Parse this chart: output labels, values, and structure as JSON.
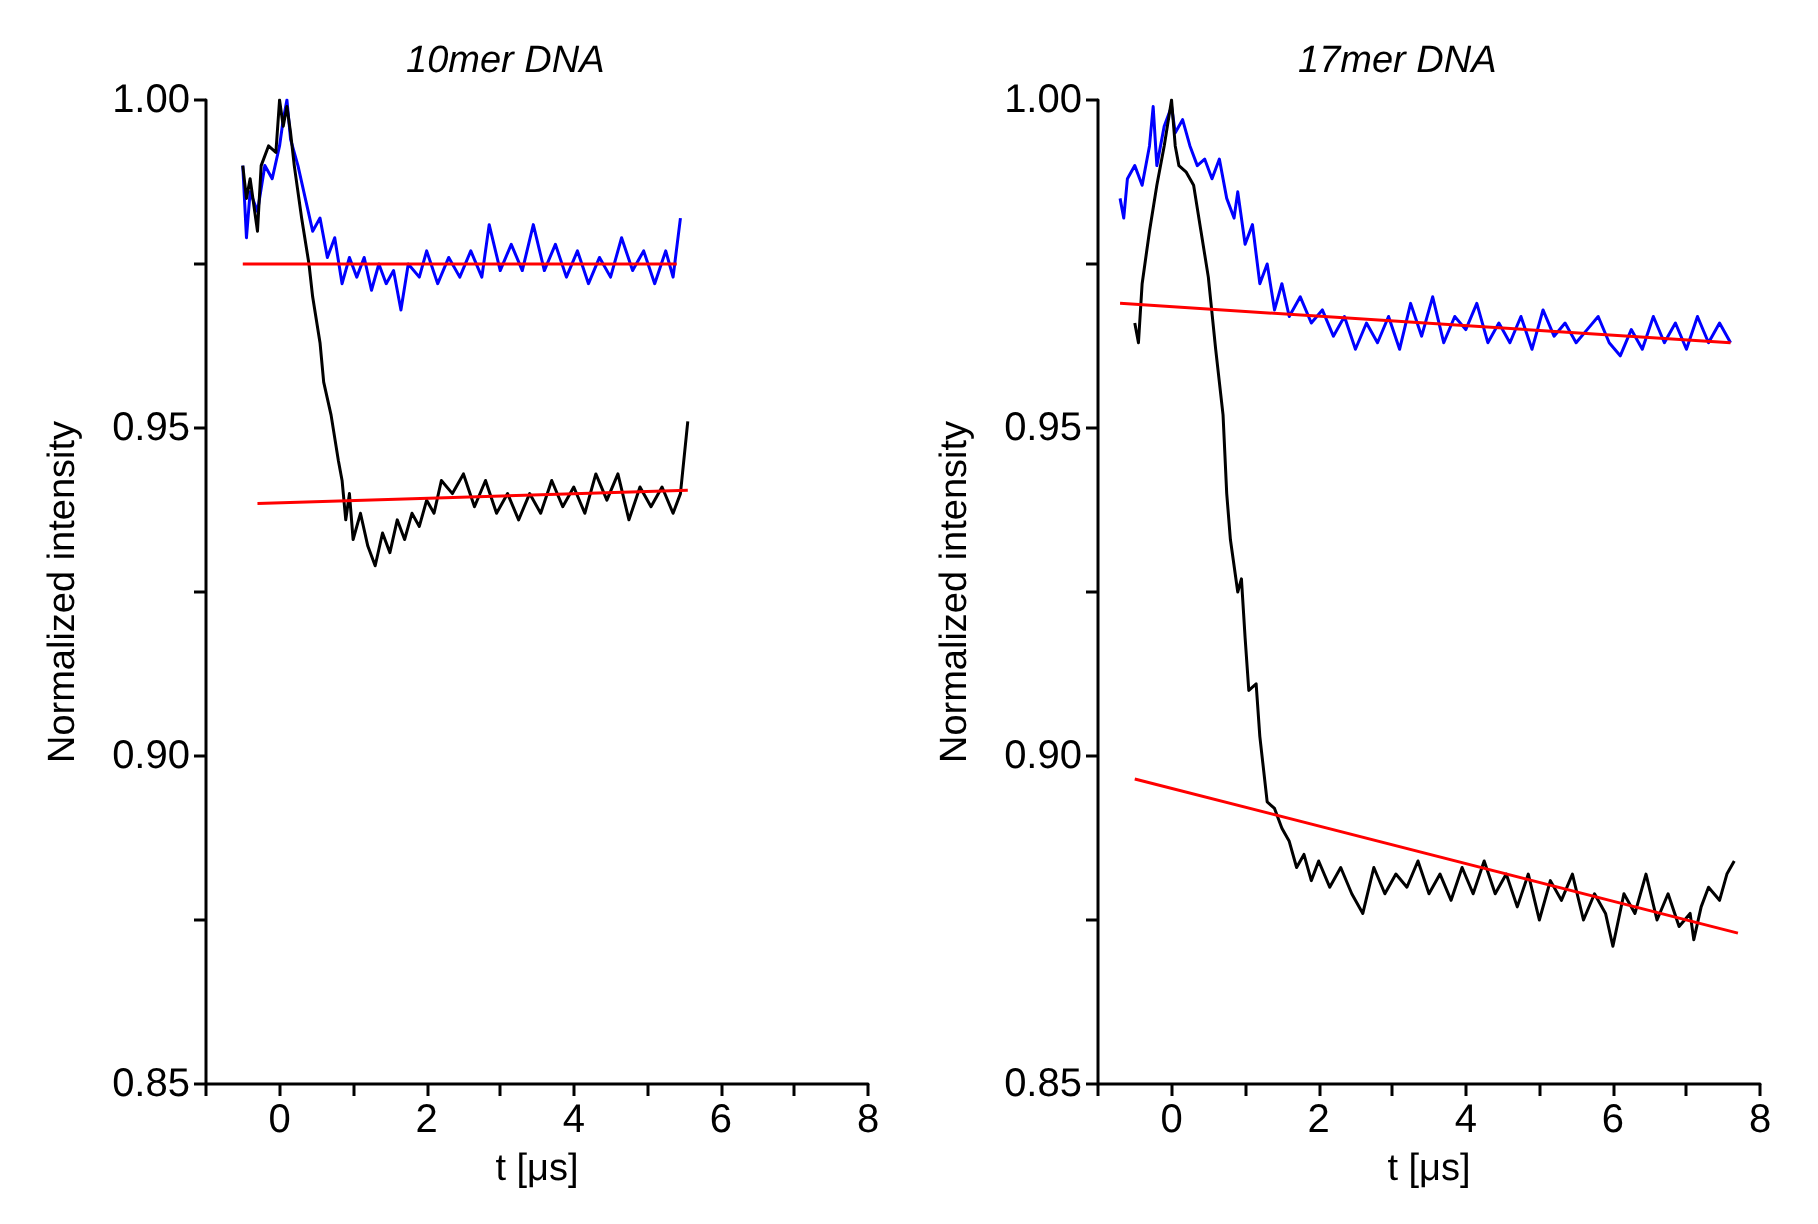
{
  "chart_data": [
    {
      "type": "line",
      "title": "10mer DNA",
      "xlabel": "t [μs]",
      "ylabel": "Normalized intensity",
      "xlim": [
        -1,
        8
      ],
      "xticks": [
        {
          "value": -1,
          "label": null
        },
        0,
        {
          "value": 1,
          "label": null
        },
        2,
        {
          "value": 3,
          "label": null
        },
        4,
        {
          "value": 5,
          "label": null
        },
        6,
        {
          "value": 7,
          "label": null
        },
        8
      ],
      "ylim": [
        0.85,
        1.0
      ],
      "yticks": [
        {
          "value": 0.85,
          "label": "0.85"
        },
        {
          "value": 0.875,
          "label": null
        },
        {
          "value": 0.9,
          "label": "0.90"
        },
        {
          "value": 0.925,
          "label": null
        },
        {
          "value": 0.95,
          "label": "0.95"
        },
        {
          "value": 0.975,
          "label": null
        },
        {
          "value": 1.0,
          "label": "1.00"
        }
      ],
      "grid": false,
      "marker": "none",
      "line_style": "solid",
      "series": [
        {
          "color": "#0000ff",
          "x": [
            -0.5,
            -0.45,
            -0.4,
            -0.3,
            -0.2,
            -0.1,
            0,
            0.05,
            0.1,
            0.15,
            0.25,
            0.35,
            0.45,
            0.55,
            0.65,
            0.75,
            0.85,
            0.95,
            1.05,
            1.15,
            1.25,
            1.35,
            1.45,
            1.55,
            1.65,
            1.75,
            1.9,
            2.0,
            2.15,
            2.3,
            2.45,
            2.6,
            2.75,
            2.85,
            3.0,
            3.15,
            3.3,
            3.45,
            3.6,
            3.75,
            3.9,
            4.05,
            4.2,
            4.35,
            4.5,
            4.65,
            4.8,
            4.95,
            5.1,
            5.25,
            5.35,
            5.45
          ],
          "values": [
            0.99,
            0.979,
            0.986,
            0.983,
            0.99,
            0.988,
            0.993,
            0.997,
            1.0,
            0.994,
            0.99,
            0.985,
            0.98,
            0.982,
            0.976,
            0.979,
            0.972,
            0.976,
            0.973,
            0.976,
            0.971,
            0.975,
            0.972,
            0.974,
            0.968,
            0.975,
            0.973,
            0.977,
            0.972,
            0.976,
            0.973,
            0.977,
            0.973,
            0.981,
            0.974,
            0.978,
            0.974,
            0.981,
            0.974,
            0.978,
            0.973,
            0.977,
            0.972,
            0.976,
            0.973,
            0.979,
            0.974,
            0.977,
            0.972,
            0.977,
            0.973,
            0.982
          ]
        },
        {
          "color": "#000000",
          "x": [
            -0.5,
            -0.45,
            -0.4,
            -0.3,
            -0.25,
            -0.15,
            -0.05,
            0,
            0.05,
            0.1,
            0.15,
            0.2,
            0.3,
            0.4,
            0.45,
            0.55,
            0.6,
            0.7,
            0.8,
            0.85,
            0.9,
            0.95,
            1.0,
            1.1,
            1.2,
            1.3,
            1.4,
            1.5,
            1.6,
            1.7,
            1.8,
            1.9,
            2.0,
            2.1,
            2.2,
            2.35,
            2.5,
            2.65,
            2.8,
            2.95,
            3.1,
            3.25,
            3.4,
            3.55,
            3.7,
            3.85,
            4.0,
            4.15,
            4.3,
            4.45,
            4.6,
            4.75,
            4.9,
            5.05,
            5.2,
            5.35,
            5.45,
            5.55
          ],
          "values": [
            0.99,
            0.985,
            0.988,
            0.98,
            0.99,
            0.993,
            0.992,
            1.0,
            0.996,
            0.999,
            0.995,
            0.99,
            0.982,
            0.975,
            0.97,
            0.963,
            0.957,
            0.952,
            0.945,
            0.942,
            0.936,
            0.94,
            0.933,
            0.937,
            0.932,
            0.929,
            0.934,
            0.931,
            0.936,
            0.933,
            0.937,
            0.935,
            0.939,
            0.937,
            0.942,
            0.94,
            0.943,
            0.938,
            0.942,
            0.937,
            0.94,
            0.936,
            0.94,
            0.937,
            0.942,
            0.938,
            0.941,
            0.937,
            0.943,
            0.939,
            0.943,
            0.936,
            0.941,
            0.938,
            0.941,
            0.937,
            0.94,
            0.951
          ]
        },
        {
          "color": "#ff0000",
          "x": [
            -0.5,
            5.4
          ],
          "values": [
            0.975,
            0.975
          ]
        },
        {
          "color": "#ff0000",
          "x": [
            -0.3,
            5.55
          ],
          "values": [
            0.9385,
            0.9405
          ]
        }
      ]
    },
    {
      "type": "line",
      "title": "17mer DNA",
      "xlabel": "t [μs]",
      "ylabel": "Normalized intensity",
      "xlim": [
        -1,
        8
      ],
      "xticks": [
        {
          "value": -1,
          "label": null
        },
        0,
        {
          "value": 1,
          "label": null
        },
        2,
        {
          "value": 3,
          "label": null
        },
        4,
        {
          "value": 5,
          "label": null
        },
        6,
        {
          "value": 7,
          "label": null
        },
        8
      ],
      "ylim": [
        0.85,
        1.0
      ],
      "yticks": [
        {
          "value": 0.85,
          "label": "0.85"
        },
        {
          "value": 0.875,
          "label": null
        },
        {
          "value": 0.9,
          "label": "0.90"
        },
        {
          "value": 0.925,
          "label": null
        },
        {
          "value": 0.95,
          "label": "0.95"
        },
        {
          "value": 0.975,
          "label": null
        },
        {
          "value": 1.0,
          "label": "1.00"
        }
      ],
      "grid": false,
      "marker": "none",
      "line_style": "solid",
      "series": [
        {
          "color": "#0000ff",
          "x": [
            -0.7,
            -0.65,
            -0.6,
            -0.5,
            -0.4,
            -0.3,
            -0.25,
            -0.2,
            -0.1,
            0,
            0.05,
            0.15,
            0.25,
            0.35,
            0.45,
            0.55,
            0.65,
            0.75,
            0.85,
            0.9,
            1.0,
            1.1,
            1.2,
            1.3,
            1.4,
            1.5,
            1.6,
            1.75,
            1.9,
            2.05,
            2.2,
            2.35,
            2.5,
            2.65,
            2.8,
            2.95,
            3.1,
            3.25,
            3.4,
            3.55,
            3.7,
            3.85,
            4.0,
            4.15,
            4.3,
            4.45,
            4.6,
            4.75,
            4.9,
            5.05,
            5.2,
            5.35,
            5.5,
            5.65,
            5.8,
            5.95,
            6.1,
            6.25,
            6.4,
            6.55,
            6.7,
            6.85,
            7.0,
            7.15,
            7.3,
            7.45,
            7.6
          ],
          "values": [
            0.985,
            0.982,
            0.988,
            0.99,
            0.987,
            0.993,
            0.999,
            0.99,
            0.996,
            0.999,
            0.995,
            0.997,
            0.993,
            0.99,
            0.991,
            0.988,
            0.991,
            0.985,
            0.982,
            0.986,
            0.978,
            0.981,
            0.972,
            0.975,
            0.968,
            0.972,
            0.967,
            0.97,
            0.966,
            0.968,
            0.964,
            0.967,
            0.962,
            0.966,
            0.963,
            0.967,
            0.962,
            0.969,
            0.964,
            0.97,
            0.963,
            0.967,
            0.965,
            0.969,
            0.963,
            0.966,
            0.963,
            0.967,
            0.962,
            0.968,
            0.964,
            0.966,
            0.963,
            0.965,
            0.967,
            0.963,
            0.961,
            0.965,
            0.962,
            0.967,
            0.963,
            0.966,
            0.962,
            0.967,
            0.963,
            0.966,
            0.963
          ]
        },
        {
          "color": "#000000",
          "x": [
            -0.5,
            -0.45,
            -0.4,
            -0.3,
            -0.2,
            -0.1,
            0,
            0.05,
            0.1,
            0.2,
            0.3,
            0.4,
            0.5,
            0.6,
            0.7,
            0.75,
            0.8,
            0.9,
            0.95,
            1.0,
            1.05,
            1.15,
            1.2,
            1.3,
            1.4,
            1.5,
            1.6,
            1.7,
            1.8,
            1.9,
            2.0,
            2.15,
            2.3,
            2.45,
            2.6,
            2.75,
            2.9,
            3.05,
            3.2,
            3.35,
            3.5,
            3.65,
            3.8,
            3.95,
            4.1,
            4.25,
            4.4,
            4.55,
            4.7,
            4.85,
            5.0,
            5.15,
            5.3,
            5.45,
            5.6,
            5.75,
            5.9,
            6.0,
            6.15,
            6.3,
            6.45,
            6.6,
            6.75,
            6.9,
            7.05,
            7.1,
            7.2,
            7.3,
            7.45,
            7.55,
            7.65
          ],
          "values": [
            0.966,
            0.963,
            0.972,
            0.98,
            0.987,
            0.993,
            1.0,
            0.993,
            0.99,
            0.989,
            0.987,
            0.98,
            0.973,
            0.962,
            0.952,
            0.94,
            0.933,
            0.925,
            0.927,
            0.918,
            0.91,
            0.911,
            0.903,
            0.893,
            0.892,
            0.889,
            0.887,
            0.883,
            0.885,
            0.881,
            0.884,
            0.88,
            0.883,
            0.879,
            0.876,
            0.883,
            0.879,
            0.882,
            0.88,
            0.884,
            0.879,
            0.882,
            0.878,
            0.883,
            0.879,
            0.884,
            0.879,
            0.882,
            0.877,
            0.882,
            0.875,
            0.881,
            0.878,
            0.882,
            0.875,
            0.879,
            0.876,
            0.871,
            0.879,
            0.876,
            0.882,
            0.875,
            0.879,
            0.874,
            0.876,
            0.872,
            0.877,
            0.88,
            0.878,
            0.882,
            0.884
          ]
        },
        {
          "color": "#ff0000",
          "x": [
            -0.7,
            7.6
          ],
          "values": [
            0.969,
            0.963
          ]
        },
        {
          "color": "#ff0000",
          "x": [
            -0.5,
            7.7
          ],
          "values": [
            0.8965,
            0.873
          ]
        }
      ]
    }
  ]
}
